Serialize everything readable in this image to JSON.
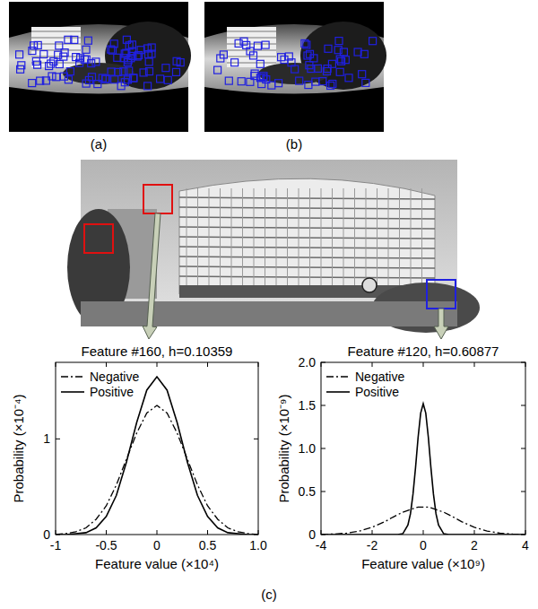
{
  "figure": {
    "labels": {
      "a": "(a)",
      "b": "(b)",
      "c": "(c)"
    }
  },
  "chart_data": [
    {
      "type": "line",
      "title": "Feature #160, h=0.10359",
      "x_label": "Feature value (×10⁴)",
      "y_label": "Probability (×10⁻⁴)",
      "x": [
        -1,
        -0.9,
        -0.8,
        -0.7,
        -0.6,
        -0.5,
        -0.4,
        -0.3,
        -0.2,
        -0.1,
        0,
        0.1,
        0.2,
        0.3,
        0.4,
        0.5,
        0.6,
        0.7,
        0.8,
        0.9,
        1
      ],
      "series": [
        {
          "name": "Negative",
          "color": "#000000",
          "line_style": "dashdot",
          "values": [
            0,
            0.01,
            0.03,
            0.07,
            0.16,
            0.3,
            0.52,
            0.79,
            1.06,
            1.27,
            1.35,
            1.27,
            1.06,
            0.79,
            0.52,
            0.3,
            0.16,
            0.07,
            0.03,
            0.01,
            0
          ]
        },
        {
          "name": "Positive",
          "color": "#000000",
          "line_style": "solid",
          "values": [
            0,
            0,
            0.01,
            0.02,
            0.07,
            0.19,
            0.41,
            0.76,
            1.17,
            1.51,
            1.65,
            1.51,
            1.17,
            0.76,
            0.41,
            0.19,
            0.07,
            0.02,
            0.01,
            0,
            0
          ]
        }
      ],
      "xlim": [
        -1,
        1
      ],
      "xticks": [
        -1,
        -0.5,
        0,
        0.5,
        {
          "value": 1,
          "label": "1.0"
        }
      ],
      "ylim": [
        0,
        1.8
      ],
      "yticks": [
        0,
        1
      ],
      "legend": "top-left",
      "grid": false
    },
    {
      "type": "line",
      "title": "Feature #120, h=0.60877",
      "x_label": "Feature value (×10⁹)",
      "y_label": "Probability (×10⁻⁹)",
      "x": [
        -4,
        -3.5,
        -3,
        -2.5,
        -2,
        -1.5,
        -1.2,
        -1,
        -0.8,
        -0.6,
        -0.5,
        -0.4,
        -0.3,
        -0.2,
        -0.1,
        0,
        0.1,
        0.2,
        0.3,
        0.4,
        0.5,
        0.6,
        0.8,
        1,
        1.2,
        1.5,
        2,
        2.5,
        3,
        3.5,
        4
      ],
      "series": [
        {
          "name": "Negative",
          "color": "#000000",
          "line_style": "dashdot",
          "values": [
            0.002,
            0.006,
            0.016,
            0.04,
            0.085,
            0.15,
            0.2,
            0.23,
            0.26,
            0.28,
            0.29,
            0.3,
            0.31,
            0.32,
            0.32,
            0.32,
            0.32,
            0.32,
            0.31,
            0.3,
            0.29,
            0.28,
            0.26,
            0.23,
            0.2,
            0.15,
            0.085,
            0.04,
            0.016,
            0.006,
            0.002
          ]
        },
        {
          "name": "Positive",
          "color": "#000000",
          "line_style": "solid",
          "values": [
            0,
            0,
            0,
            0,
            0,
            0,
            0,
            0,
            0.01,
            0.11,
            0.24,
            0.47,
            0.78,
            1.13,
            1.41,
            1.52,
            1.41,
            1.13,
            0.78,
            0.47,
            0.24,
            0.11,
            0.01,
            0,
            0,
            0,
            0,
            0,
            0,
            0,
            0
          ]
        }
      ],
      "xlim": [
        -4,
        4
      ],
      "xticks": [
        -4,
        -2,
        0,
        2,
        4
      ],
      "ylim": [
        0,
        2
      ],
      "yticks": [
        0,
        0.5,
        {
          "value": 1,
          "label": "1.0"
        },
        1.5,
        {
          "value": 2,
          "label": "2.0"
        }
      ],
      "legend": "top-left",
      "grid": false
    }
  ]
}
